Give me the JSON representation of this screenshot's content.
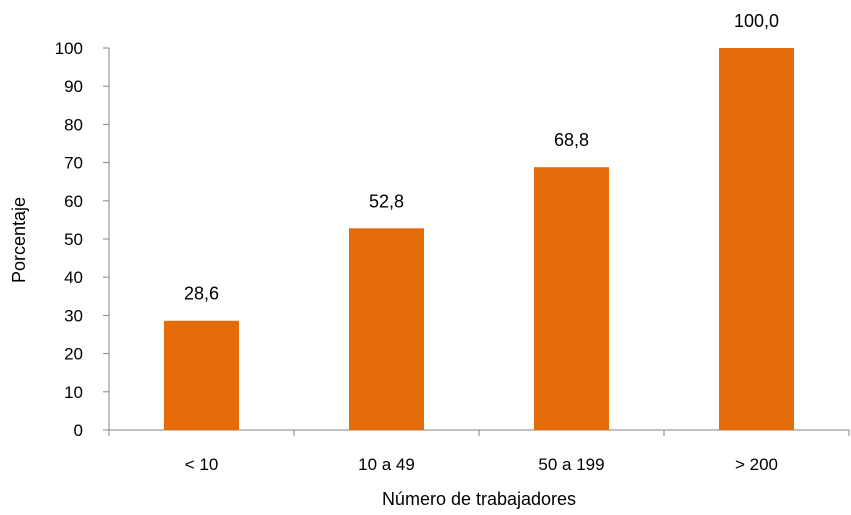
{
  "chart_data": {
    "type": "bar",
    "title": "",
    "xlabel": "Número de trabajadores",
    "ylabel": "Porcentaje",
    "categories": [
      "< 10",
      "10 a 49",
      "50 a 199",
      "> 200"
    ],
    "values": [
      28.6,
      52.8,
      68.8,
      100.0
    ],
    "data_labels": [
      "28,6",
      "52,8",
      "68,8",
      "100,0"
    ],
    "ylim": [
      0,
      100
    ],
    "yticks": [
      0,
      10,
      20,
      30,
      40,
      50,
      60,
      70,
      80,
      90,
      100
    ],
    "grid": false,
    "legend": "none",
    "bar_color": "#E46C0A"
  }
}
